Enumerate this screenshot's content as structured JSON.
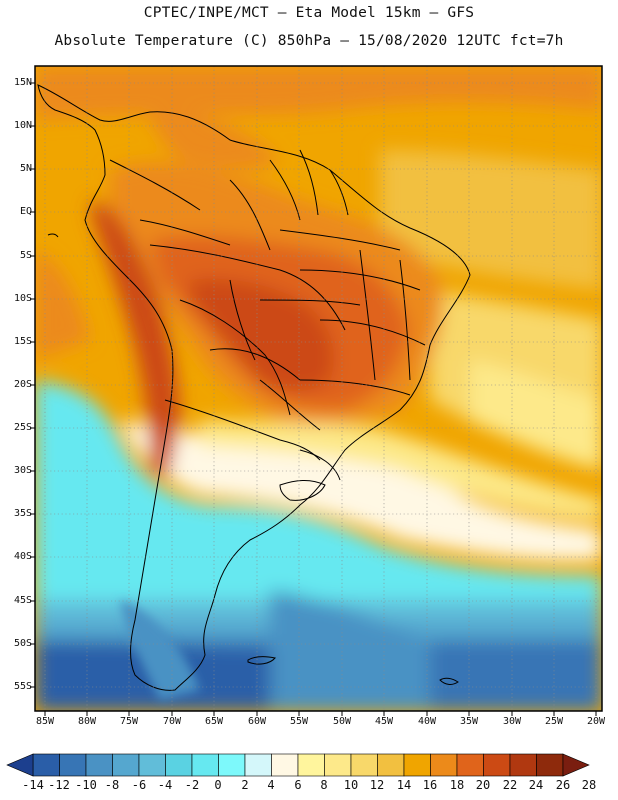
{
  "title_line1": "CPTEC/INPE/MCT –   Eta Model 15km – GFS",
  "title_line2": "Absolute Temperature (C) 850hPa – 15/08/2020 12UTC fct=7h",
  "lat_labels": [
    "15N",
    "10N",
    "5N",
    "EQ",
    "5S",
    "10S",
    "15S",
    "20S",
    "25S",
    "30S",
    "35S",
    "40S",
    "45S",
    "50S",
    "55S"
  ],
  "lon_labels": [
    "85W",
    "80W",
    "75W",
    "70W",
    "65W",
    "60W",
    "55W",
    "50W",
    "45W",
    "40W",
    "35W",
    "30W",
    "25W",
    "20W"
  ],
  "colorbar": {
    "labels": [
      "-14",
      "-12",
      "-10",
      "-8",
      "-6",
      "-4",
      "-2",
      "0",
      "2",
      "4",
      "6",
      "8",
      "10",
      "12",
      "14",
      "16",
      "18",
      "20",
      "22",
      "24",
      "26",
      "28"
    ],
    "colors": [
      "#1c3f8e",
      "#2a5ea8",
      "#3775b5",
      "#4a92c4",
      "#55a7cf",
      "#61bdd9",
      "#5ad2e2",
      "#66e8f0",
      "#7df9fb",
      "#d4f7fa",
      "#fff8e4",
      "#fff59d",
      "#fde98a",
      "#f8d86a",
      "#f2c040",
      "#f0a500",
      "#ec8a1a",
      "#e0641b",
      "#cc4a14",
      "#b03810",
      "#8e2a0c",
      "#7a1e10"
    ]
  },
  "layers": {
    "background": "temperature-field",
    "overlays": [
      "country-borders",
      "state-borders",
      "dotted-graticule"
    ]
  }
}
